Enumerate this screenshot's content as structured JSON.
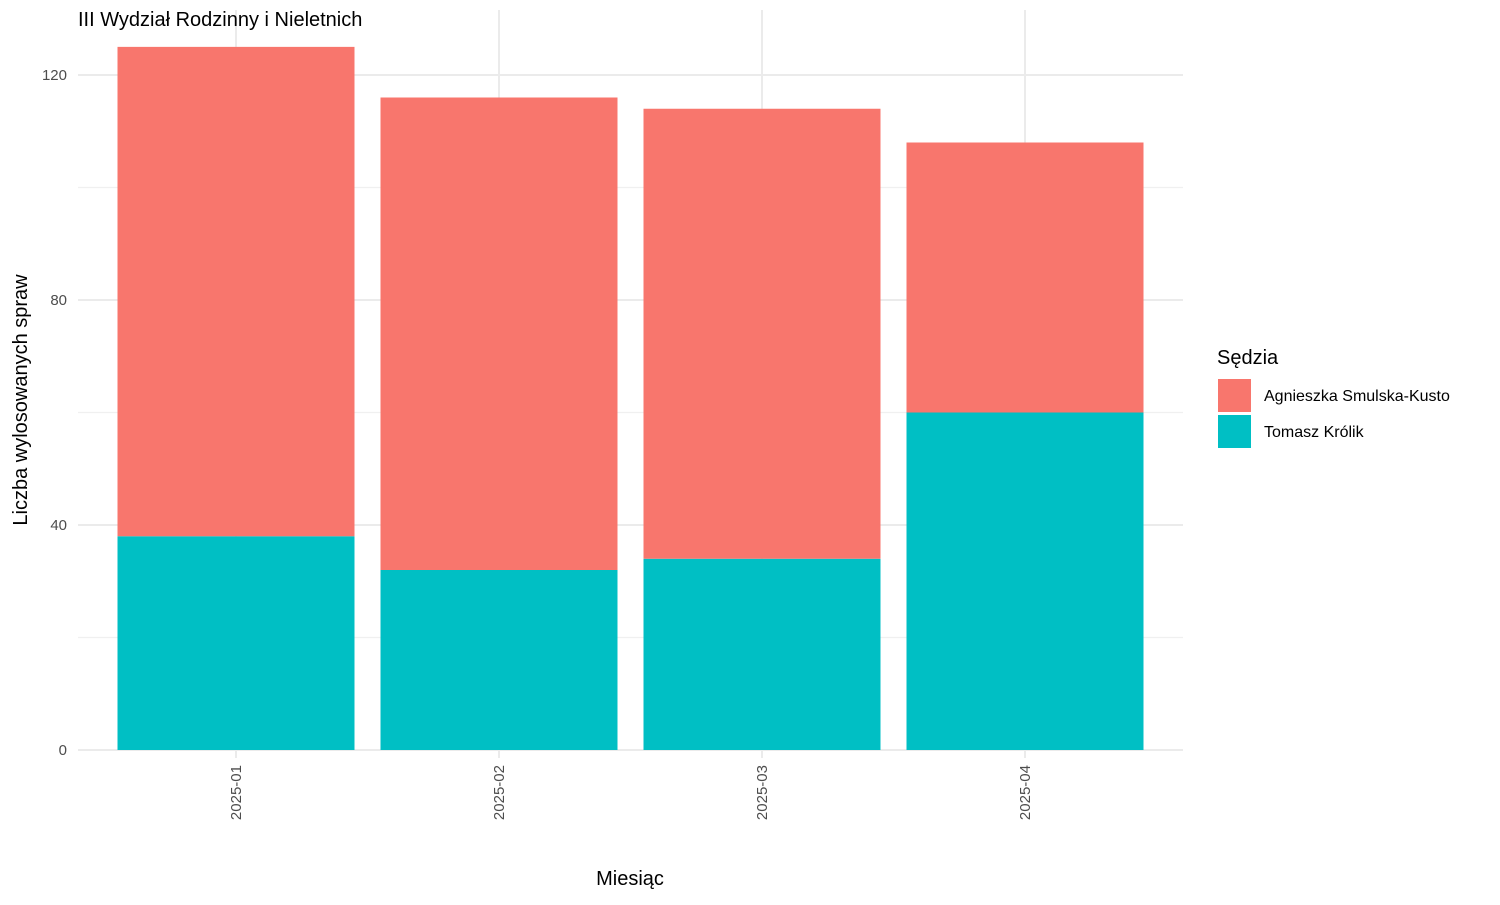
{
  "chart_data": {
    "type": "bar",
    "stacked": true,
    "title": "III Wydział Rodzinny i Nieletnich",
    "xlabel": "Miesiąc",
    "ylabel": "Liczba wylosowanych spraw",
    "categories": [
      "2025-01",
      "2025-02",
      "2025-03",
      "2025-04"
    ],
    "series": [
      {
        "name": "Tomasz Królik",
        "color": "#00BFC4",
        "values": [
          38,
          32,
          34,
          60
        ]
      },
      {
        "name": "Agnieszka Smulska-Kusto",
        "color": "#F8766D",
        "values": [
          87,
          84,
          80,
          48
        ]
      }
    ],
    "ylim": [
      0,
      125
    ],
    "yticks": [
      0,
      40,
      80,
      120
    ],
    "grid": true,
    "legend": {
      "title": "Sędzia",
      "placement": "right",
      "order": [
        "Agnieszka Smulska-Kusto",
        "Tomasz Królik"
      ]
    }
  }
}
